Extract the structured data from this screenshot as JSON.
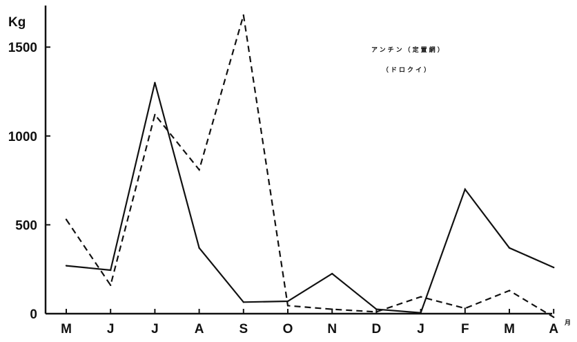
{
  "chart_data": {
    "type": "line",
    "title": "",
    "ylabel": "Kg",
    "xunit": "月",
    "categories": [
      "M",
      "J",
      "J",
      "A",
      "S",
      "O",
      "N",
      "D",
      "J",
      "F",
      "M",
      "A"
    ],
    "ylim": [
      0,
      1700
    ],
    "yticks": [
      0,
      500,
      1000,
      1500
    ],
    "grid": false,
    "annotations": [
      "アンチン（定置網）",
      "（ドロクイ）"
    ],
    "series": [
      {
        "style": "solid",
        "values": [
          270,
          245,
          1300,
          370,
          65,
          70,
          225,
          25,
          5,
          700,
          370,
          260
        ]
      },
      {
        "style": "dashed",
        "values": [
          530,
          160,
          1120,
          810,
          1680,
          45,
          25,
          10,
          95,
          30,
          130,
          -20
        ]
      }
    ],
    "colors": {
      "line": "#111111",
      "axis": "#111111",
      "background": "#ffffff"
    }
  }
}
